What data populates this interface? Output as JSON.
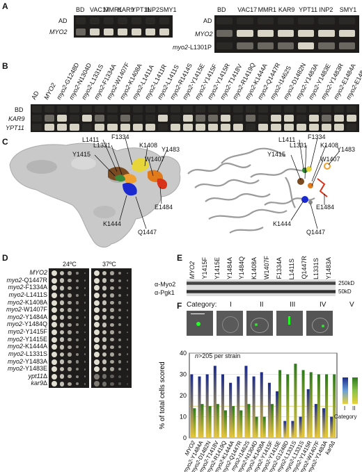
{
  "panels": [
    "A",
    "B",
    "C",
    "D",
    "E",
    "F"
  ],
  "A": {
    "left": {
      "row_labels": [
        "AD",
        "MYO2"
      ],
      "col_labels": [
        "BD",
        "VAC17",
        "MMR1",
        "KAR9",
        "YPT11",
        "INP2",
        "SMY1"
      ]
    },
    "right": {
      "row_labels": [
        "AD",
        "MYO2",
        "myo2-L1301P"
      ],
      "col_labels": [
        "BD",
        "VAC17",
        "MMR1",
        "KAR9",
        "YPT11",
        "INP2",
        "SMY1"
      ]
    }
  },
  "B": {
    "col_labels": [
      "AD",
      "MYO2",
      "myo2-G1248D",
      "myo2-N1304D",
      "myo2-L1331S",
      "myo2-F1334A",
      "myo2-W1407F",
      "myo2-K1408A",
      "myo2-L1411A",
      "myo2-L1411R",
      "myo2-L1411S",
      "myo2-R1414S",
      "myo2-Y1415E",
      "myo2-Y1415F",
      "myo2-Y1415R",
      "myo2-T1418V",
      "myo2-R1419Q",
      "myo2-K1444A",
      "myo2-Q1447R",
      "myo2-I1462S",
      "myo2-D1482N",
      "myo2-Y1483A",
      "myo2-Y1483E",
      "myo2-Y1483R",
      "myo2-E1484A",
      "myo2-E1484Q"
    ],
    "row_labels": [
      "BD",
      "KAR9",
      "YPT11"
    ]
  },
  "C": {
    "left_labels": [
      "L1411",
      "F1334",
      "L1331",
      "K1408",
      "Y1415",
      "Y1483",
      "W1407",
      "E1484",
      "K1444",
      "Q1447"
    ],
    "right_labels": [
      "L1411",
      "F1334",
      "L1331",
      "K1408",
      "Y1415",
      "Y1483",
      "W1407",
      "E1484",
      "K1444",
      "Q1447"
    ]
  },
  "D": {
    "temps": [
      "24ºC",
      "37ºC"
    ],
    "strains": [
      "MYO2",
      "myo2-Q1447R",
      "myo2-F1334A",
      "myo2-L1411S",
      "myo2-K1408A",
      "myo2-W1407F",
      "myo2-Y1484A",
      "myo2-Y1484Q",
      "myo2-Y1415F",
      "myo2-Y1415E",
      "myo2-K1444A",
      "myo2-L1331S",
      "myo2-Y1483A",
      "myo2-Y1483E",
      "ypt11Δ",
      "kar9Δ"
    ]
  },
  "E": {
    "lanes": [
      "MYO2",
      "Y1415F",
      "Y1415E",
      "Y1484A",
      "Y1484Q",
      "K1408A",
      "W1407F",
      "F1334A",
      "L1411S",
      "Q1447R",
      "L1331S",
      "Y1483A"
    ],
    "rows": [
      "α-Myo2",
      "α-Pgk1"
    ],
    "markers": [
      "250kD",
      "50kD"
    ]
  },
  "F": {
    "category_label": "Category:",
    "categories": [
      "I",
      "II",
      "III",
      "IV",
      "V"
    ],
    "n_note_prefix": "n",
    "n_note": ">205 per strain",
    "legend_title": "Category",
    "legend_items": [
      "I",
      "II"
    ]
  },
  "chart_data": {
    "type": "bar",
    "ylabel": "% of total cells scored",
    "ylim": [
      0,
      40
    ],
    "yticks": [
      0,
      10,
      20,
      30,
      40
    ],
    "categories": [
      "MYO2",
      "myo2-Y1484A",
      "myo2-D1482N",
      "myo2-T1418V",
      "myo2-R1419Q",
      "myo2-K1444A",
      "myo2-Q1447R",
      "myo2-I1462S",
      "myo2-N1304D",
      "myo2-K1408A",
      "myo2-Y1415F",
      "myo2-Y1415E",
      "myo2-G1248D",
      "myo2-L1331S",
      "myo2-L1331S",
      "myo2-Y1415R",
      "myo2-W1407F",
      "myo2-Y1483A",
      "kar9Δ"
    ],
    "series": [
      {
        "name": "I",
        "values": [
          30,
          29,
          30,
          34,
          30,
          26,
          29,
          34,
          29,
          31,
          26,
          22,
          8,
          8,
          10,
          23,
          16,
          14,
          10
        ]
      },
      {
        "name": "II",
        "values": [
          14,
          16,
          15,
          16,
          13,
          15,
          13,
          16,
          10,
          10,
          16,
          32,
          30,
          35,
          32,
          31,
          30,
          30,
          30
        ]
      }
    ]
  },
  "colors": {
    "cat_I": "#1b2a8a",
    "cat_II": "#2d7a1c",
    "cat_mid": "#d7c75a",
    "lowbar": "#e8c73a"
  }
}
